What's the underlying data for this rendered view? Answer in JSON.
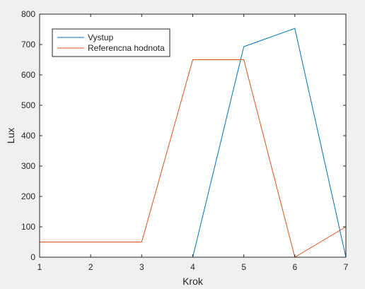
{
  "figure": {
    "background": "#f0f0f0",
    "axes_background": "#ffffff",
    "axes_color": "#262626"
  },
  "chart_data": {
    "type": "line",
    "xlabel": "Krok",
    "ylabel": "Lux",
    "xlim": [
      1,
      7
    ],
    "ylim": [
      0,
      800
    ],
    "xticks": [
      1,
      2,
      3,
      4,
      5,
      6,
      7
    ],
    "yticks": [
      0,
      100,
      200,
      300,
      400,
      500,
      600,
      700,
      800
    ],
    "grid": false,
    "legend_position": "top-left",
    "series": [
      {
        "name": "Vystup",
        "color": "#0072bd",
        "x": [
          1,
          2,
          3,
          4,
          5,
          6,
          7
        ],
        "y": [
          0,
          0,
          0,
          0,
          693,
          753,
          0
        ]
      },
      {
        "name": "Referencna hodnota",
        "color": "#d95319",
        "x": [
          1,
          2,
          3,
          4,
          5,
          6,
          7
        ],
        "y": [
          50,
          50,
          50,
          650,
          650,
          0,
          100
        ]
      }
    ]
  }
}
